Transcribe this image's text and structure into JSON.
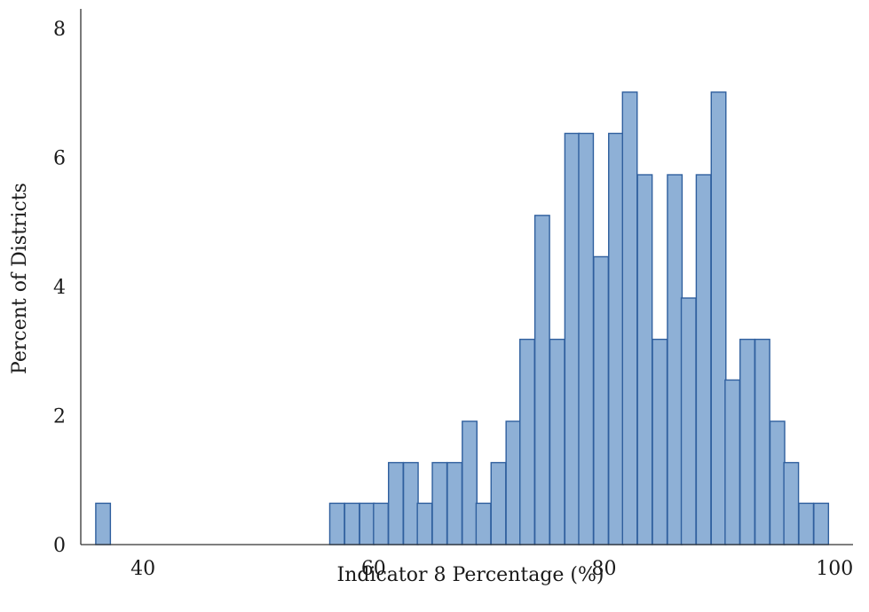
{
  "chart_data": {
    "type": "bar",
    "title": "",
    "xlabel": "Indicator 8 Percentage (%)",
    "ylabel": "Percent of Districts",
    "xlim": [
      34.6,
      101.6
    ],
    "ylim": [
      0,
      8.3
    ],
    "xticks": [
      40,
      60,
      80,
      100
    ],
    "yticks": [
      0,
      2,
      4,
      6,
      8
    ],
    "grid": false,
    "legend": "none",
    "colors": {
      "bar_fill": "#8eb0d6",
      "bar_edge": "#2f5f9e"
    },
    "bin_width": 1.27,
    "bins": [
      {
        "x0": 35.9,
        "y": 0.64
      },
      {
        "x0": 56.2,
        "y": 0.64
      },
      {
        "x0": 57.5,
        "y": 0.64
      },
      {
        "x0": 58.8,
        "y": 0.64
      },
      {
        "x0": 60.0,
        "y": 0.64
      },
      {
        "x0": 61.3,
        "y": 1.27
      },
      {
        "x0": 62.6,
        "y": 1.27
      },
      {
        "x0": 63.8,
        "y": 0.64
      },
      {
        "x0": 65.1,
        "y": 1.27
      },
      {
        "x0": 66.4,
        "y": 1.27
      },
      {
        "x0": 67.7,
        "y": 1.91
      },
      {
        "x0": 68.9,
        "y": 0.64
      },
      {
        "x0": 70.2,
        "y": 1.27
      },
      {
        "x0": 71.5,
        "y": 1.91
      },
      {
        "x0": 72.7,
        "y": 3.18
      },
      {
        "x0": 74.0,
        "y": 5.1
      },
      {
        "x0": 75.3,
        "y": 3.18
      },
      {
        "x0": 76.6,
        "y": 6.37
      },
      {
        "x0": 77.8,
        "y": 6.37
      },
      {
        "x0": 79.1,
        "y": 4.46
      },
      {
        "x0": 80.4,
        "y": 6.37
      },
      {
        "x0": 81.6,
        "y": 7.01
      },
      {
        "x0": 82.9,
        "y": 5.73
      },
      {
        "x0": 84.2,
        "y": 3.18
      },
      {
        "x0": 85.5,
        "y": 5.73
      },
      {
        "x0": 86.7,
        "y": 3.82
      },
      {
        "x0": 88.0,
        "y": 5.73
      },
      {
        "x0": 89.3,
        "y": 7.01
      },
      {
        "x0": 90.5,
        "y": 2.55
      },
      {
        "x0": 91.8,
        "y": 3.18
      },
      {
        "x0": 93.1,
        "y": 3.18
      },
      {
        "x0": 94.4,
        "y": 1.91
      },
      {
        "x0": 95.6,
        "y": 1.27
      },
      {
        "x0": 96.9,
        "y": 0.64
      },
      {
        "x0": 98.2,
        "y": 0.64
      }
    ]
  }
}
